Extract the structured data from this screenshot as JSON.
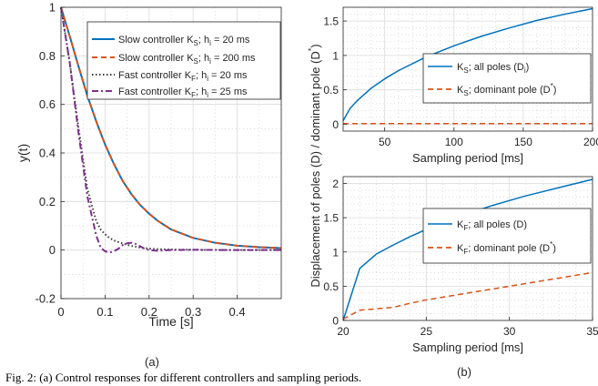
{
  "caption": "Fig. 2: (a) Control responses for different controllers and sampling periods.",
  "chart_data": [
    {
      "id": "a",
      "panel_label": "(a)",
      "type": "line",
      "xlabel": "Time [s]",
      "ylabel": "y(t)",
      "xlim": [
        0,
        0.5
      ],
      "ylim": [
        -0.2,
        1
      ],
      "xticks": [
        0,
        0.1,
        0.2,
        0.3,
        0.4
      ],
      "xtick_labels": [
        "0",
        "0.1",
        "0.2",
        "0.3",
        "0.4"
      ],
      "yticks": [
        -0.2,
        0,
        0.2,
        0.4,
        0.6,
        0.8,
        1
      ],
      "ytick_labels": [
        "-0.2",
        "0",
        "0.2",
        "0.4",
        "0.6",
        "0.8",
        "1"
      ],
      "grid": true,
      "legend_position": "top-right",
      "series": [
        {
          "name": "Slow controller K_S; h_i = 20 ms",
          "color": "#0072BD",
          "style": "solid",
          "x": [
            0,
            0.02,
            0.04,
            0.06,
            0.08,
            0.1,
            0.12,
            0.14,
            0.16,
            0.18,
            0.2,
            0.22,
            0.25,
            0.3,
            0.35,
            0.4,
            0.45,
            0.5
          ],
          "y": [
            1,
            0.88,
            0.755,
            0.635,
            0.53,
            0.435,
            0.355,
            0.285,
            0.23,
            0.185,
            0.15,
            0.12,
            0.085,
            0.05,
            0.03,
            0.018,
            0.012,
            0.008
          ]
        },
        {
          "name": "Slow controller K_S; h_i = 200 ms",
          "color": "#D95319",
          "style": "dashed",
          "x": [
            0,
            0.02,
            0.04,
            0.06,
            0.08,
            0.1,
            0.12,
            0.14,
            0.16,
            0.18,
            0.2,
            0.22,
            0.25,
            0.3,
            0.35,
            0.4,
            0.45,
            0.5
          ],
          "y": [
            1,
            0.88,
            0.755,
            0.635,
            0.53,
            0.435,
            0.355,
            0.285,
            0.23,
            0.185,
            0.15,
            0.12,
            0.085,
            0.05,
            0.03,
            0.018,
            0.012,
            0.008
          ]
        },
        {
          "name": "Fast controller K_F; h_i = 20 ms",
          "color": "#3a3a3a",
          "style": "dotted",
          "x": [
            0,
            0.02,
            0.04,
            0.06,
            0.08,
            0.09,
            0.1,
            0.11,
            0.12,
            0.13,
            0.14,
            0.16,
            0.18,
            0.2,
            0.22,
            0.25,
            0.3,
            0.4,
            0.5
          ],
          "y": [
            1,
            0.77,
            0.5,
            0.25,
            0.12,
            0.085,
            0.065,
            0.05,
            0.04,
            0.033,
            0.027,
            0.017,
            0.01,
            0.006,
            0.004,
            0.002,
            0.001,
            0,
            0
          ]
        },
        {
          "name": "Fast controller K_F; h_i = 25 ms",
          "color": "#7E2F8E",
          "style": "dashdot",
          "x": [
            0,
            0.02,
            0.04,
            0.06,
            0.08,
            0.09,
            0.1,
            0.11,
            0.12,
            0.13,
            0.14,
            0.15,
            0.16,
            0.17,
            0.18,
            0.19,
            0.2,
            0.22,
            0.25,
            0.3,
            0.4,
            0.5
          ],
          "y": [
            1,
            0.77,
            0.48,
            0.22,
            0.06,
            0.01,
            -0.005,
            -0.01,
            -0.005,
            0.005,
            0.02,
            0.028,
            0.03,
            0.025,
            0.015,
            0.005,
            0.0,
            -0.003,
            0.0,
            0.001,
            0,
            0
          ]
        }
      ]
    },
    {
      "id": "b_top",
      "type": "line",
      "xlabel": "Sampling period [ms]",
      "xlim": [
        20,
        200
      ],
      "ylim": [
        -0.1,
        1.7
      ],
      "xticks": [
        50,
        100,
        150,
        200
      ],
      "xtick_labels": [
        "50",
        "100",
        "150",
        "200"
      ],
      "yticks": [
        0,
        0.5,
        1,
        1.5
      ],
      "ytick_labels": [
        "0",
        "0.5",
        "1",
        "1.5"
      ],
      "grid": true,
      "legend_position": "right",
      "series": [
        {
          "name": "K_S; all poles (D_i)",
          "color": "#0072BD",
          "style": "solid",
          "x": [
            20,
            25,
            30,
            40,
            50,
            60,
            80,
            100,
            120,
            140,
            160,
            180,
            200
          ],
          "y": [
            0.05,
            0.23,
            0.34,
            0.52,
            0.66,
            0.78,
            0.98,
            1.14,
            1.28,
            1.4,
            1.51,
            1.6,
            1.68
          ]
        },
        {
          "name": "K_S; dominant pole (D*)",
          "color": "#D95319",
          "style": "dashed",
          "x": [
            20,
            60,
            100,
            150,
            200
          ],
          "y": [
            0.01,
            0.01,
            0.01,
            0.01,
            0.01
          ]
        }
      ]
    },
    {
      "id": "b_bottom",
      "panel_label": "(b)",
      "type": "line",
      "xlabel": "Sampling period [ms]",
      "xlim": [
        20,
        35
      ],
      "ylim": [
        0,
        2.1
      ],
      "xticks": [
        20,
        25,
        30,
        35
      ],
      "xtick_labels": [
        "20",
        "25",
        "30",
        "35"
      ],
      "yticks": [
        0,
        0.5,
        1,
        1.5,
        2
      ],
      "ytick_labels": [
        "0",
        "0.5",
        "1",
        "1.5",
        "2"
      ],
      "grid": true,
      "legend_position": "right",
      "series": [
        {
          "name": "K_F; all poles (D)",
          "color": "#0072BD",
          "style": "solid",
          "x": [
            20,
            21,
            22,
            23,
            24,
            25,
            26,
            27,
            28,
            29,
            30,
            31,
            32,
            33,
            34,
            35
          ],
          "y": [
            0,
            0.76,
            0.97,
            1.1,
            1.22,
            1.33,
            1.43,
            1.52,
            1.6,
            1.68,
            1.75,
            1.82,
            1.88,
            1.94,
            2.0,
            2.06
          ]
        },
        {
          "name": "K_F; dominant pole (D*)",
          "color": "#D95319",
          "style": "dashed",
          "x": [
            20,
            21,
            22,
            23,
            24,
            25,
            26,
            27,
            28,
            29,
            30,
            31,
            32,
            33,
            34,
            35
          ],
          "y": [
            0.02,
            0.15,
            0.17,
            0.19,
            0.25,
            0.3,
            0.34,
            0.38,
            0.42,
            0.46,
            0.5,
            0.54,
            0.58,
            0.62,
            0.66,
            0.7
          ]
        }
      ]
    }
  ],
  "shared_ylabel_right": "Displacement of poles (D) / dominant pole (D*)"
}
